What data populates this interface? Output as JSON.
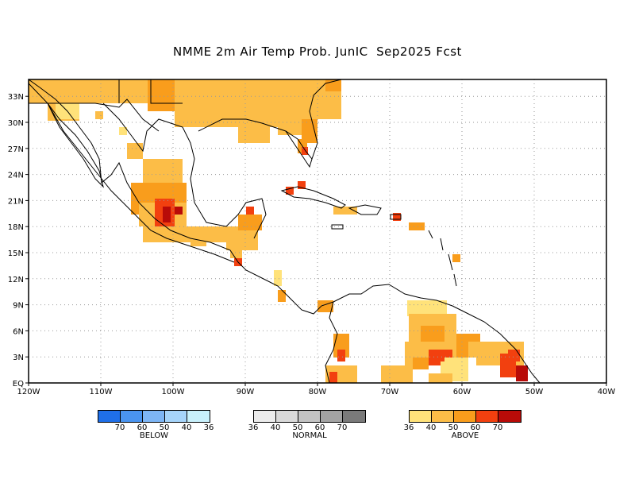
{
  "title": "NMME 2m Air Temp Prob. JunIC  Sep2025 Fcst",
  "map": {
    "lon_labels": [
      "120W",
      "110W",
      "100W",
      "90W",
      "80W",
      "70W",
      "60W",
      "50W",
      "40W"
    ],
    "lat_labels": [
      "EQ",
      "3N",
      "6N",
      "9N",
      "12N",
      "15N",
      "18N",
      "21N",
      "24N",
      "27N",
      "30N",
      "33N"
    ]
  },
  "legends": {
    "below": {
      "caption": "BELOW",
      "ticks": [
        "70",
        "60",
        "50",
        "40",
        "36"
      ],
      "colors": [
        "#1f6fe8",
        "#4a94f0",
        "#7db5f5",
        "#a6d4fa",
        "#c8f0fb"
      ]
    },
    "normal": {
      "caption": "NORMAL",
      "ticks": [
        "36",
        "40",
        "50",
        "60",
        "70"
      ],
      "colors": [
        "#ececec",
        "#d9d9d9",
        "#c3c3c3",
        "#a3a3a3",
        "#7a7a7a"
      ]
    },
    "above": {
      "caption": "ABOVE",
      "ticks": [
        "36",
        "40",
        "50",
        "60",
        "70"
      ],
      "colors": [
        "#ffe27a",
        "#fcbd47",
        "#f99d1c",
        "#f2400f",
        "#b80b08"
      ]
    }
  }
}
